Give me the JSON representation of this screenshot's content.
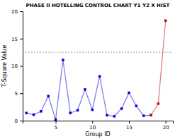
{
  "chart_data": {
    "type": "line",
    "title": "PHASE II HOTELLING CONTROL CHART Y1 Y2 X HIST",
    "xlabel": "Group ID",
    "ylabel": "T-Square Value",
    "x": [
      1,
      2,
      3,
      4,
      5,
      6,
      7,
      8,
      9,
      10,
      11,
      12,
      13,
      14,
      15,
      16,
      17,
      18,
      19,
      20
    ],
    "series": [
      {
        "color": "#0000dd",
        "values": [
          1.4,
          1.1,
          1.7,
          4.5,
          0.2,
          11.1,
          1.4,
          1.9,
          5.7,
          2.0,
          8.1,
          1.0,
          0.8,
          2.2,
          5.1,
          2.7,
          0.9,
          1.0,
          null,
          null
        ]
      },
      {
        "color": "#cc0000",
        "values": [
          null,
          null,
          null,
          null,
          null,
          null,
          null,
          null,
          null,
          null,
          null,
          null,
          null,
          null,
          null,
          null,
          null,
          1.0,
          3.1,
          18.3
        ]
      }
    ],
    "ucl": 12.5,
    "marker": "square",
    "line_style": "solid",
    "xlim": [
      0.5,
      21
    ],
    "ylim": [
      0,
      20
    ],
    "xticks": [
      5,
      10,
      15,
      20
    ],
    "yticks": [
      0,
      5,
      10,
      15,
      20
    ],
    "grid": false
  }
}
